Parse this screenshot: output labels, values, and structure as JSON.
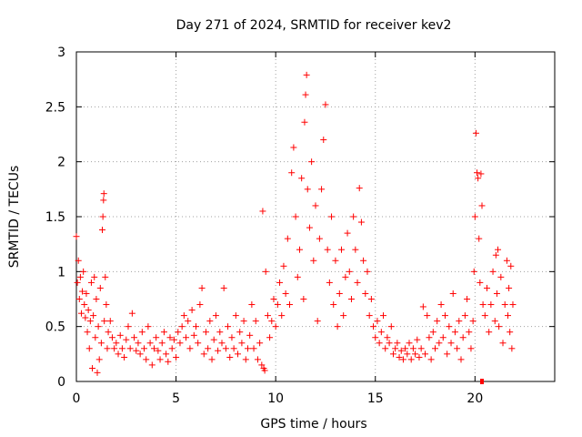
{
  "chart_data": {
    "type": "scatter",
    "title": "Day 271 of 2024, SRMTID for receiver kev2",
    "xlabel": "GPS time / hours",
    "ylabel": "SRMTID / TECUs",
    "xlim": [
      0,
      24
    ],
    "ylim": [
      0,
      3
    ],
    "xticks": [
      0,
      5,
      10,
      15,
      20
    ],
    "yticks": [
      0,
      0.5,
      1,
      1.5,
      2,
      2.5,
      3
    ],
    "xtick_labels": [
      "0",
      "5",
      "10",
      "15",
      "20"
    ],
    "ytick_labels": [
      "0",
      "0.5",
      "1",
      "1.5",
      "2",
      "2.5",
      "3"
    ],
    "grid": true,
    "marker": "+",
    "color": "#ff0000",
    "series": [
      {
        "name": "SRMTID",
        "points": [
          [
            0.0,
            1.32
          ],
          [
            0.05,
            0.9
          ],
          [
            0.1,
            1.1
          ],
          [
            0.15,
            0.75
          ],
          [
            0.2,
            0.95
          ],
          [
            0.25,
            0.62
          ],
          [
            0.3,
            0.82
          ],
          [
            0.35,
            1.0
          ],
          [
            0.4,
            0.7
          ],
          [
            0.45,
            0.58
          ],
          [
            0.5,
            0.8
          ],
          [
            0.55,
            0.45
          ],
          [
            0.6,
            0.65
          ],
          [
            0.65,
            0.3
          ],
          [
            0.7,
            0.55
          ],
          [
            0.75,
            0.9
          ],
          [
            0.8,
            0.12
          ],
          [
            0.85,
            0.6
          ],
          [
            0.9,
            0.95
          ],
          [
            0.95,
            0.4
          ],
          [
            1.0,
            0.75
          ],
          [
            1.05,
            0.08
          ],
          [
            1.1,
            0.5
          ],
          [
            1.15,
            0.2
          ],
          [
            1.2,
            0.85
          ],
          [
            1.25,
            0.35
          ],
          [
            1.3,
            1.38
          ],
          [
            1.33,
            1.5
          ],
          [
            1.36,
            1.65
          ],
          [
            1.38,
            1.71
          ],
          [
            1.4,
            0.55
          ],
          [
            1.45,
            0.95
          ],
          [
            1.5,
            0.7
          ],
          [
            1.55,
            0.3
          ],
          [
            1.6,
            0.45
          ],
          [
            1.7,
            0.55
          ],
          [
            1.8,
            0.4
          ],
          [
            1.9,
            0.3
          ],
          [
            2.0,
            0.35
          ],
          [
            2.1,
            0.25
          ],
          [
            2.2,
            0.42
          ],
          [
            2.3,
            0.3
          ],
          [
            2.4,
            0.22
          ],
          [
            2.5,
            0.38
          ],
          [
            2.6,
            0.5
          ],
          [
            2.7,
            0.3
          ],
          [
            2.8,
            0.62
          ],
          [
            2.9,
            0.4
          ],
          [
            3.0,
            0.28
          ],
          [
            3.1,
            0.35
          ],
          [
            3.2,
            0.25
          ],
          [
            3.3,
            0.45
          ],
          [
            3.4,
            0.3
          ],
          [
            3.5,
            0.2
          ],
          [
            3.6,
            0.5
          ],
          [
            3.7,
            0.35
          ],
          [
            3.8,
            0.15
          ],
          [
            3.9,
            0.3
          ],
          [
            4.0,
            0.4
          ],
          [
            4.1,
            0.28
          ],
          [
            4.2,
            0.2
          ],
          [
            4.3,
            0.35
          ],
          [
            4.4,
            0.45
          ],
          [
            4.5,
            0.25
          ],
          [
            4.6,
            0.18
          ],
          [
            4.7,
            0.4
          ],
          [
            4.8,
            0.3
          ],
          [
            4.9,
            0.38
          ],
          [
            5.0,
            0.22
          ],
          [
            5.1,
            0.45
          ],
          [
            5.2,
            0.35
          ],
          [
            5.3,
            0.5
          ],
          [
            5.4,
            0.6
          ],
          [
            5.5,
            0.4
          ],
          [
            5.6,
            0.55
          ],
          [
            5.7,
            0.3
          ],
          [
            5.8,
            0.65
          ],
          [
            5.9,
            0.42
          ],
          [
            6.0,
            0.5
          ],
          [
            6.1,
            0.35
          ],
          [
            6.2,
            0.7
          ],
          [
            6.3,
            0.85
          ],
          [
            6.4,
            0.25
          ],
          [
            6.5,
            0.45
          ],
          [
            6.6,
            0.3
          ],
          [
            6.7,
            0.55
          ],
          [
            6.8,
            0.2
          ],
          [
            6.9,
            0.38
          ],
          [
            7.0,
            0.6
          ],
          [
            7.1,
            0.28
          ],
          [
            7.2,
            0.45
          ],
          [
            7.3,
            0.35
          ],
          [
            7.4,
            0.85
          ],
          [
            7.5,
            0.3
          ],
          [
            7.6,
            0.5
          ],
          [
            7.7,
            0.22
          ],
          [
            7.8,
            0.4
          ],
          [
            7.9,
            0.3
          ],
          [
            8.0,
            0.6
          ],
          [
            8.1,
            0.25
          ],
          [
            8.2,
            0.45
          ],
          [
            8.3,
            0.35
          ],
          [
            8.4,
            0.55
          ],
          [
            8.5,
            0.2
          ],
          [
            8.6,
            0.3
          ],
          [
            8.7,
            0.42
          ],
          [
            8.8,
            0.7
          ],
          [
            8.9,
            0.3
          ],
          [
            9.0,
            0.55
          ],
          [
            9.1,
            0.2
          ],
          [
            9.2,
            0.35
          ],
          [
            9.3,
            0.15
          ],
          [
            9.35,
            1.55
          ],
          [
            9.4,
            0.12
          ],
          [
            9.45,
            0.1
          ],
          [
            9.5,
            1.0
          ],
          [
            9.6,
            0.6
          ],
          [
            9.7,
            0.4
          ],
          [
            9.8,
            0.55
          ],
          [
            9.9,
            0.75
          ],
          [
            10.0,
            0.5
          ],
          [
            10.1,
            0.7
          ],
          [
            10.2,
            0.9
          ],
          [
            10.3,
            0.6
          ],
          [
            10.4,
            1.05
          ],
          [
            10.5,
            0.8
          ],
          [
            10.6,
            1.3
          ],
          [
            10.7,
            0.7
          ],
          [
            10.8,
            1.9
          ],
          [
            10.9,
            2.13
          ],
          [
            11.0,
            1.5
          ],
          [
            11.1,
            0.95
          ],
          [
            11.2,
            1.2
          ],
          [
            11.3,
            1.85
          ],
          [
            11.4,
            0.75
          ],
          [
            11.45,
            2.36
          ],
          [
            11.5,
            2.61
          ],
          [
            11.55,
            2.79
          ],
          [
            11.6,
            1.75
          ],
          [
            11.7,
            1.4
          ],
          [
            11.8,
            2.0
          ],
          [
            11.9,
            1.1
          ],
          [
            12.0,
            1.6
          ],
          [
            12.1,
            0.55
          ],
          [
            12.2,
            1.3
          ],
          [
            12.3,
            1.75
          ],
          [
            12.4,
            2.2
          ],
          [
            12.5,
            2.52
          ],
          [
            12.6,
            1.2
          ],
          [
            12.7,
            0.9
          ],
          [
            12.8,
            1.5
          ],
          [
            12.9,
            0.7
          ],
          [
            13.0,
            1.1
          ],
          [
            13.1,
            0.5
          ],
          [
            13.2,
            0.8
          ],
          [
            13.3,
            1.2
          ],
          [
            13.4,
            0.6
          ],
          [
            13.5,
            0.95
          ],
          [
            13.6,
            1.35
          ],
          [
            13.7,
            1.0
          ],
          [
            13.8,
            0.75
          ],
          [
            13.9,
            1.5
          ],
          [
            14.0,
            1.2
          ],
          [
            14.1,
            0.9
          ],
          [
            14.2,
            1.76
          ],
          [
            14.3,
            1.45
          ],
          [
            14.4,
            1.1
          ],
          [
            14.5,
            0.8
          ],
          [
            14.6,
            1.0
          ],
          [
            14.7,
            0.6
          ],
          [
            14.8,
            0.75
          ],
          [
            14.9,
            0.5
          ],
          [
            15.0,
            0.4
          ],
          [
            15.1,
            0.55
          ],
          [
            15.2,
            0.35
          ],
          [
            15.3,
            0.45
          ],
          [
            15.4,
            0.6
          ],
          [
            15.5,
            0.3
          ],
          [
            15.6,
            0.4
          ],
          [
            15.7,
            0.35
          ],
          [
            15.8,
            0.5
          ],
          [
            15.9,
            0.25
          ],
          [
            16.0,
            0.3
          ],
          [
            16.1,
            0.35
          ],
          [
            16.2,
            0.22
          ],
          [
            16.3,
            0.28
          ],
          [
            16.4,
            0.2
          ],
          [
            16.5,
            0.3
          ],
          [
            16.6,
            0.25
          ],
          [
            16.7,
            0.35
          ],
          [
            16.8,
            0.2
          ],
          [
            16.9,
            0.3
          ],
          [
            17.0,
            0.25
          ],
          [
            17.1,
            0.38
          ],
          [
            17.2,
            0.22
          ],
          [
            17.3,
            0.3
          ],
          [
            17.4,
            0.68
          ],
          [
            17.5,
            0.25
          ],
          [
            17.6,
            0.6
          ],
          [
            17.7,
            0.4
          ],
          [
            17.8,
            0.2
          ],
          [
            17.9,
            0.45
          ],
          [
            18.0,
            0.3
          ],
          [
            18.1,
            0.55
          ],
          [
            18.2,
            0.35
          ],
          [
            18.3,
            0.7
          ],
          [
            18.4,
            0.4
          ],
          [
            18.5,
            0.6
          ],
          [
            18.6,
            0.25
          ],
          [
            18.7,
            0.5
          ],
          [
            18.8,
            0.35
          ],
          [
            18.9,
            0.8
          ],
          [
            19.0,
            0.45
          ],
          [
            19.1,
            0.3
          ],
          [
            19.2,
            0.55
          ],
          [
            19.3,
            0.2
          ],
          [
            19.4,
            0.4
          ],
          [
            19.5,
            0.6
          ],
          [
            19.6,
            0.75
          ],
          [
            19.7,
            0.45
          ],
          [
            19.8,
            0.3
          ],
          [
            19.9,
            0.55
          ],
          [
            19.95,
            1.0
          ],
          [
            20.0,
            1.5
          ],
          [
            20.05,
            2.26
          ],
          [
            20.1,
            1.9
          ],
          [
            20.15,
            1.85
          ],
          [
            20.2,
            1.3
          ],
          [
            20.25,
            0.9
          ],
          [
            20.3,
            1.89
          ],
          [
            20.35,
            1.6
          ],
          [
            20.4,
            0.7
          ],
          [
            20.5,
            0.6
          ],
          [
            20.6,
            0.85
          ],
          [
            20.7,
            0.45
          ],
          [
            20.8,
            0.7
          ],
          [
            20.9,
            1.0
          ],
          [
            21.0,
            0.55
          ],
          [
            21.05,
            1.15
          ],
          [
            21.1,
            0.8
          ],
          [
            21.15,
            1.2
          ],
          [
            21.2,
            0.5
          ],
          [
            21.3,
            0.95
          ],
          [
            21.4,
            0.35
          ],
          [
            21.5,
            0.7
          ],
          [
            21.6,
            1.1
          ],
          [
            21.65,
            0.6
          ],
          [
            21.7,
            0.85
          ],
          [
            21.75,
            0.45
          ],
          [
            21.8,
            1.05
          ],
          [
            21.85,
            0.3
          ],
          [
            21.9,
            0.7
          ]
        ]
      }
    ],
    "highlight_point": [
      20.35,
      0.0
    ]
  }
}
